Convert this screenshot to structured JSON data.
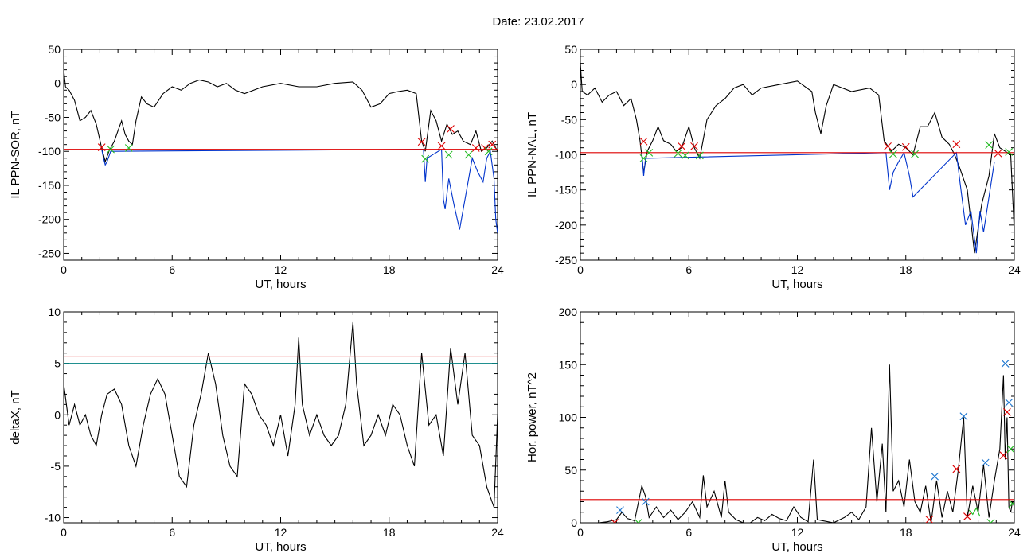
{
  "figure_title": "Date:  23.02.2017",
  "colors": {
    "axes": "#000000",
    "trace": "#000000",
    "highlight_trace": "#0033cc",
    "threshold_red": "#dd0000",
    "threshold_teal": "#008080",
    "marker_red": "#dd0000",
    "marker_green": "#22bb22",
    "marker_blue": "#1f77d0"
  },
  "chart_data": [
    {
      "type": "line",
      "title": "",
      "xlabel": "UT, hours",
      "ylabel": "IL PPN-SOR, nT",
      "xlim": [
        0,
        24
      ],
      "ylim": [
        -260,
        50
      ],
      "xticks": [
        0,
        6,
        12,
        18,
        24
      ],
      "yticks": [
        50,
        0,
        -50,
        -100,
        -150,
        -200,
        -250
      ],
      "grid": false,
      "thresholds": [
        {
          "y": -97,
          "color": "red"
        }
      ],
      "series": [
        {
          "style": "black",
          "x": [
            0,
            0.1,
            0.3,
            0.6,
            0.9,
            1.2,
            1.5,
            1.8,
            2.1,
            2.3,
            2.5,
            2.8,
            3.0,
            3.2,
            3.4,
            3.6,
            3.8,
            4.0,
            4.3,
            4.6,
            5.0,
            5.5,
            6.0,
            6.5,
            7.0,
            7.5,
            8.0,
            8.5,
            9.0,
            9.5,
            10.0,
            11.0,
            12.0,
            13.0,
            14.0,
            15.0,
            16.0,
            16.5,
            17.0,
            17.5,
            18.0,
            18.5,
            19.0,
            19.5,
            19.8,
            20.0,
            20.3,
            20.6,
            20.9,
            21.2,
            21.5,
            21.8,
            22.1,
            22.5,
            22.8,
            23.1,
            23.4,
            23.7,
            24.0
          ],
          "y": [
            20,
            -5,
            -10,
            -25,
            -55,
            -50,
            -40,
            -60,
            -95,
            -115,
            -100,
            -85,
            -70,
            -55,
            -75,
            -85,
            -90,
            -55,
            -20,
            -30,
            -35,
            -15,
            -5,
            -10,
            0,
            5,
            2,
            -5,
            0,
            -10,
            -15,
            -5,
            0,
            -5,
            -5,
            0,
            2,
            -10,
            -35,
            -30,
            -15,
            -12,
            -10,
            -15,
            -85,
            -100,
            -40,
            -55,
            -85,
            -60,
            -75,
            -70,
            -85,
            -90,
            -70,
            -100,
            -95,
            -85,
            -100
          ]
        },
        {
          "style": "blue",
          "x": [
            2.1,
            2.2,
            2.3,
            2.4,
            2.6,
            19.9,
            20.0,
            20.1,
            20.9,
            21.0,
            21.1,
            21.3,
            21.6,
            21.9,
            22.4,
            22.6,
            22.9,
            23.2,
            23.4,
            23.6,
            23.8,
            23.9,
            24.0
          ],
          "y": [
            -97,
            -110,
            -120,
            -115,
            -100,
            -97,
            -145,
            -110,
            -97,
            -170,
            -185,
            -140,
            -180,
            -215,
            -140,
            -110,
            -130,
            -145,
            -110,
            -100,
            -140,
            -200,
            -220
          ]
        }
      ],
      "markers": [
        {
          "x": 2.1,
          "y": -94,
          "color": "red"
        },
        {
          "x": 2.6,
          "y": -97,
          "color": "green"
        },
        {
          "x": 3.6,
          "y": -95,
          "color": "green"
        },
        {
          "x": 19.8,
          "y": -86,
          "color": "red"
        },
        {
          "x": 20.0,
          "y": -111,
          "color": "green"
        },
        {
          "x": 20.9,
          "y": -92,
          "color": "red"
        },
        {
          "x": 21.3,
          "y": -105,
          "color": "green"
        },
        {
          "x": 21.4,
          "y": -67,
          "color": "red"
        },
        {
          "x": 22.4,
          "y": -105,
          "color": "green"
        },
        {
          "x": 22.8,
          "y": -95,
          "color": "red"
        },
        {
          "x": 23.3,
          "y": -95,
          "color": "red"
        },
        {
          "x": 23.5,
          "y": -100,
          "color": "green"
        },
        {
          "x": 23.7,
          "y": -90,
          "color": "red"
        }
      ]
    },
    {
      "type": "line",
      "title": "",
      "xlabel": "UT, hours",
      "ylabel": "IL PPN-NAL, nT",
      "xlim": [
        0,
        24
      ],
      "ylim": [
        -250,
        50
      ],
      "xticks": [
        0,
        6,
        12,
        18,
        24
      ],
      "yticks": [
        50,
        0,
        -50,
        -100,
        -150,
        -200,
        -250
      ],
      "grid": false,
      "thresholds": [
        {
          "y": -97,
          "color": "red"
        }
      ],
      "series": [
        {
          "style": "black",
          "x": [
            0,
            0.1,
            0.4,
            0.8,
            1.2,
            1.6,
            2.0,
            2.4,
            2.8,
            3.1,
            3.3,
            3.5,
            3.7,
            4.0,
            4.3,
            4.6,
            5.0,
            5.3,
            5.6,
            6.0,
            6.3,
            6.6,
            7.0,
            7.5,
            8.0,
            8.5,
            9.0,
            9.5,
            10.0,
            11.0,
            12.0,
            12.8,
            13.0,
            13.3,
            13.6,
            14.0,
            15.0,
            16.0,
            16.5,
            16.8,
            17.2,
            17.6,
            18.0,
            18.4,
            18.8,
            19.2,
            19.6,
            20.0,
            20.4,
            20.7,
            21.0,
            21.4,
            21.8,
            22.2,
            22.6,
            22.9,
            23.2,
            23.5,
            23.8,
            24.0
          ],
          "y": [
            30,
            -10,
            -15,
            -5,
            -25,
            -15,
            -10,
            -30,
            -20,
            -50,
            -80,
            -125,
            -95,
            -80,
            -60,
            -80,
            -85,
            -95,
            -90,
            -60,
            -90,
            -105,
            -50,
            -30,
            -20,
            -5,
            0,
            -15,
            -5,
            0,
            5,
            -10,
            -40,
            -70,
            -30,
            0,
            -10,
            -5,
            -15,
            -80,
            -95,
            -85,
            -90,
            -100,
            -60,
            -60,
            -40,
            -75,
            -85,
            -100,
            -120,
            -150,
            -240,
            -170,
            -130,
            -70,
            -90,
            -95,
            -100,
            -210
          ]
        },
        {
          "style": "blue",
          "x": [
            3.4,
            3.5,
            3.6,
            16.9,
            17.1,
            17.3,
            17.6,
            17.9,
            18.2,
            18.4,
            20.8,
            21.0,
            21.3,
            21.6,
            21.9,
            22.1,
            22.3,
            22.6,
            22.9
          ],
          "y": [
            -97,
            -130,
            -105,
            -97,
            -150,
            -125,
            -110,
            -97,
            -130,
            -160,
            -97,
            -140,
            -200,
            -180,
            -240,
            -180,
            -210,
            -160,
            -110
          ]
        }
      ],
      "markers": [
        {
          "x": 3.5,
          "y": -81,
          "color": "red"
        },
        {
          "x": 3.5,
          "y": -105,
          "color": "green"
        },
        {
          "x": 3.8,
          "y": -97,
          "color": "green"
        },
        {
          "x": 5.4,
          "y": -98,
          "color": "green"
        },
        {
          "x": 5.6,
          "y": -88,
          "color": "red"
        },
        {
          "x": 5.8,
          "y": -101,
          "color": "green"
        },
        {
          "x": 6.3,
          "y": -88,
          "color": "red"
        },
        {
          "x": 6.6,
          "y": -101,
          "color": "green"
        },
        {
          "x": 17.0,
          "y": -88,
          "color": "red"
        },
        {
          "x": 17.3,
          "y": -99,
          "color": "green"
        },
        {
          "x": 18.0,
          "y": -89,
          "color": "red"
        },
        {
          "x": 18.5,
          "y": -99,
          "color": "green"
        },
        {
          "x": 20.8,
          "y": -85,
          "color": "red"
        },
        {
          "x": 22.6,
          "y": -86,
          "color": "green"
        },
        {
          "x": 23.1,
          "y": -98,
          "color": "red"
        },
        {
          "x": 23.7,
          "y": -96,
          "color": "green"
        }
      ]
    },
    {
      "type": "line",
      "title": "",
      "xlabel": "UT, hours",
      "ylabel": "deltaX, nT",
      "xlim": [
        0,
        24
      ],
      "ylim": [
        -10.5,
        10
      ],
      "xticks": [
        0,
        6,
        12,
        18,
        24
      ],
      "yticks": [
        10,
        5,
        0,
        -5,
        -10
      ],
      "grid": false,
      "thresholds": [
        {
          "y": 5.7,
          "color": "red"
        },
        {
          "y": 5.0,
          "color": "teal"
        }
      ],
      "series": [
        {
          "style": "black",
          "x": [
            0,
            0.3,
            0.6,
            0.9,
            1.2,
            1.5,
            1.8,
            2.1,
            2.4,
            2.8,
            3.2,
            3.6,
            4.0,
            4.4,
            4.8,
            5.2,
            5.6,
            6.0,
            6.4,
            6.8,
            7.2,
            7.6,
            8.0,
            8.4,
            8.8,
            9.2,
            9.6,
            10.0,
            10.4,
            10.8,
            11.2,
            11.6,
            12.0,
            12.4,
            12.8,
            13.0,
            13.2,
            13.6,
            14.0,
            14.4,
            14.8,
            15.2,
            15.6,
            16.0,
            16.2,
            16.6,
            17.0,
            17.4,
            17.8,
            18.2,
            18.6,
            19.0,
            19.4,
            19.8,
            20.2,
            20.6,
            21.0,
            21.4,
            21.8,
            22.2,
            22.6,
            23.0,
            23.4,
            23.8,
            24.0
          ],
          "y": [
            3,
            -1,
            1,
            -1,
            0,
            -2,
            -3,
            0,
            2,
            2.5,
            1,
            -3,
            -5,
            -1,
            2,
            3.5,
            2,
            -2,
            -6,
            -7,
            -1,
            2,
            6,
            3,
            -2,
            -5,
            -6,
            3,
            2,
            0,
            -1,
            -3,
            0,
            -4,
            1,
            7.5,
            1,
            -2,
            0,
            -2,
            -3,
            -2,
            1,
            9,
            3,
            -3,
            -2,
            0,
            -2,
            1,
            0,
            -3,
            -5,
            6,
            -1,
            0,
            -4,
            6.5,
            1,
            6,
            -2,
            -3,
            -7,
            -9,
            0
          ]
        }
      ],
      "markers": []
    },
    {
      "type": "line",
      "title": "",
      "xlabel": "UT, hours",
      "ylabel": "Hor. power, nT^2",
      "xlim": [
        0,
        24
      ],
      "ylim": [
        0,
        200
      ],
      "xticks": [
        0,
        6,
        12,
        18,
        24
      ],
      "yticks": [
        200,
        150,
        100,
        50,
        0
      ],
      "grid": false,
      "thresholds": [
        {
          "y": 22,
          "color": "red"
        }
      ],
      "series": [
        {
          "style": "black",
          "x": [
            0,
            0.5,
            1.0,
            1.5,
            2.0,
            2.3,
            2.6,
            3.0,
            3.4,
            3.6,
            3.8,
            4.2,
            4.6,
            5.0,
            5.4,
            5.8,
            6.2,
            6.6,
            6.8,
            7.0,
            7.4,
            7.8,
            8.0,
            8.2,
            8.6,
            9.0,
            9.4,
            9.8,
            10.2,
            10.6,
            11.0,
            11.4,
            11.8,
            12.2,
            12.6,
            12.9,
            13.1,
            13.4,
            14.0,
            14.6,
            15.0,
            15.4,
            15.8,
            16.1,
            16.4,
            16.7,
            16.9,
            17.1,
            17.3,
            17.6,
            17.9,
            18.2,
            18.5,
            18.8,
            19.1,
            19.4,
            19.7,
            20.0,
            20.3,
            20.6,
            20.9,
            21.2,
            21.4,
            21.7,
            22.0,
            22.3,
            22.6,
            22.9,
            23.2,
            23.4,
            23.5,
            23.6,
            23.7,
            23.8,
            23.9,
            24.0
          ],
          "y": [
            0,
            0,
            0,
            1,
            3,
            10,
            4,
            2,
            35,
            25,
            5,
            15,
            5,
            12,
            3,
            10,
            20,
            5,
            45,
            15,
            30,
            5,
            40,
            10,
            3,
            0,
            0,
            5,
            2,
            8,
            4,
            2,
            15,
            5,
            1,
            60,
            3,
            2,
            0,
            5,
            10,
            3,
            15,
            90,
            20,
            75,
            10,
            150,
            30,
            40,
            15,
            60,
            20,
            10,
            35,
            0,
            40,
            5,
            30,
            10,
            50,
            100,
            5,
            35,
            10,
            55,
            5,
            40,
            70,
            140,
            60,
            100,
            15,
            10,
            20,
            15
          ]
        },
        {
          "style": "green",
          "x": [
            21.5,
            21.7,
            21.9,
            22.1
          ],
          "y": [
            12,
            8,
            14,
            6
          ]
        }
      ],
      "markers": [
        {
          "x": 2.2,
          "y": 12,
          "color": "blue"
        },
        {
          "x": 1.9,
          "y": 0,
          "color": "red"
        },
        {
          "x": 3.6,
          "y": 20,
          "color": "blue"
        },
        {
          "x": 3.2,
          "y": 0,
          "color": "green"
        },
        {
          "x": 19.6,
          "y": 44,
          "color": "blue"
        },
        {
          "x": 19.3,
          "y": 3,
          "color": "red"
        },
        {
          "x": 20.8,
          "y": 51,
          "color": "red"
        },
        {
          "x": 21.2,
          "y": 101,
          "color": "blue"
        },
        {
          "x": 21.4,
          "y": 6,
          "color": "red"
        },
        {
          "x": 22.4,
          "y": 57,
          "color": "blue"
        },
        {
          "x": 22.7,
          "y": 0,
          "color": "green"
        },
        {
          "x": 23.4,
          "y": 64,
          "color": "red"
        },
        {
          "x": 23.5,
          "y": 151,
          "color": "blue"
        },
        {
          "x": 23.6,
          "y": 105,
          "color": "red"
        },
        {
          "x": 23.7,
          "y": 114,
          "color": "blue"
        },
        {
          "x": 23.8,
          "y": 70,
          "color": "green"
        },
        {
          "x": 23.9,
          "y": 18,
          "color": "green"
        }
      ]
    }
  ]
}
